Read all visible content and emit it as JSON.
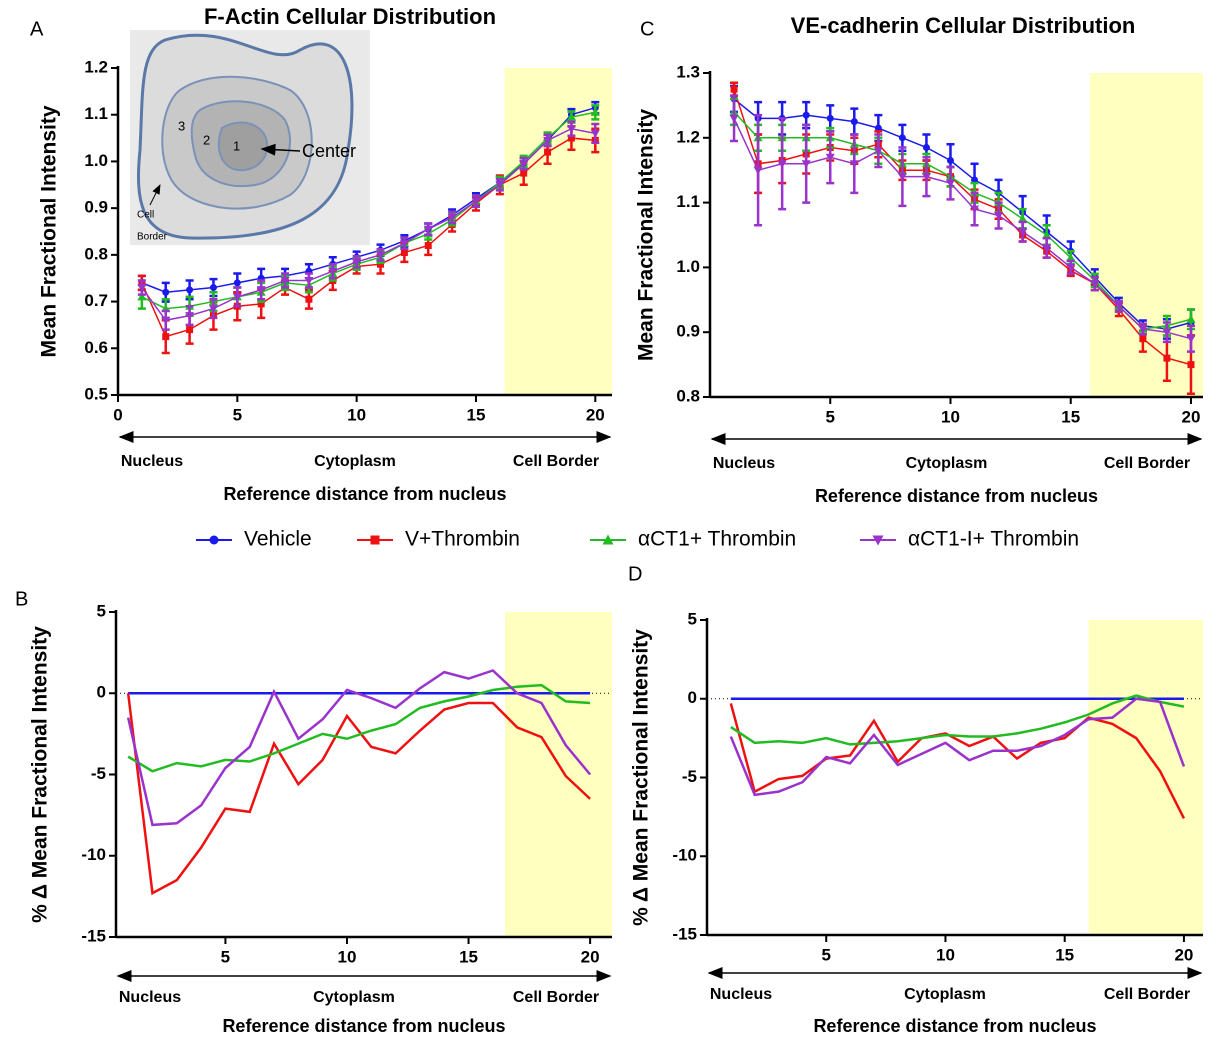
{
  "chart_data": [
    {
      "type": "line",
      "label": "A",
      "title": "F-Actin Cellular  Distribution",
      "ylabel": "Mean Fractional Intensity",
      "xlabel": "Reference distance from nucleus",
      "annotations": [
        "Nucleus",
        "Cytoplasm",
        "Cell Border"
      ],
      "inset_labels": [
        "3",
        "2",
        "1",
        "Center",
        "Cell",
        "Border"
      ],
      "x": [
        1,
        2,
        3,
        4,
        5,
        6,
        7,
        8,
        9,
        10,
        11,
        12,
        13,
        14,
        15,
        16,
        17,
        18,
        19,
        20
      ],
      "xlim": [
        0,
        20.7
      ],
      "xticks": [
        0,
        5,
        10,
        15,
        20
      ],
      "ylim": [
        0.5,
        1.2
      ],
      "yticks": [
        0.5,
        0.6,
        0.7,
        0.8,
        0.9,
        {
          "value": 1,
          "label": "1.0"
        },
        1.1,
        1.2
      ],
      "highlight": [
        16.2,
        20.7
      ],
      "highlight_color": "#ffffc0",
      "markers": true,
      "grid": false,
      "series": [
        {
          "name": "Vehicle",
          "color": "#1a1aee",
          "marker": "circle",
          "values": [
            0.74,
            0.72,
            0.725,
            0.73,
            0.74,
            0.75,
            0.755,
            0.765,
            0.78,
            0.795,
            0.81,
            0.83,
            0.855,
            0.885,
            0.92,
            0.955,
            0.995,
            1.045,
            1.1,
            1.115
          ],
          "errors": [
            0.015,
            0.02,
            0.02,
            0.018,
            0.02,
            0.02,
            0.015,
            0.015,
            0.015,
            0.012,
            0.012,
            0.012,
            0.012,
            0.012,
            0.012,
            0.012,
            0.012,
            0.012,
            0.012,
            0.012
          ]
        },
        {
          "name": "V+Thrombin",
          "color": "#ee1111",
          "marker": "square",
          "values": [
            0.74,
            0.625,
            0.64,
            0.67,
            0.69,
            0.695,
            0.73,
            0.705,
            0.745,
            0.775,
            0.78,
            0.805,
            0.82,
            0.865,
            0.91,
            0.95,
            0.975,
            1.02,
            1.05,
            1.045
          ],
          "errors": [
            0.015,
            0.035,
            0.03,
            0.03,
            0.03,
            0.03,
            0.015,
            0.02,
            0.02,
            0.015,
            0.02,
            0.02,
            0.02,
            0.015,
            0.015,
            0.02,
            0.025,
            0.025,
            0.025,
            0.025
          ]
        },
        {
          "name": "αCT1+ Thrombin",
          "color": "#22bb22",
          "marker": "triangle-up",
          "values": [
            0.71,
            0.685,
            0.69,
            0.7,
            0.71,
            0.72,
            0.74,
            0.735,
            0.76,
            0.78,
            0.795,
            0.825,
            0.845,
            0.875,
            0.915,
            0.955,
            1.0,
            1.05,
            1.095,
            1.105
          ],
          "errors": [
            0.025,
            0.02,
            0.02,
            0.02,
            0.02,
            0.02,
            0.015,
            0.015,
            0.015,
            0.012,
            0.012,
            0.012,
            0.012,
            0.012,
            0.012,
            0.012,
            0.012,
            0.012,
            0.012,
            0.015
          ]
        },
        {
          "name": "αCT1-I+ Thrombin",
          "color": "#9933cc",
          "marker": "triangle-down",
          "values": [
            0.73,
            0.66,
            0.67,
            0.685,
            0.71,
            0.725,
            0.745,
            0.745,
            0.765,
            0.785,
            0.8,
            0.825,
            0.855,
            0.88,
            0.915,
            0.95,
            0.995,
            1.045,
            1.07,
            1.06
          ],
          "errors": [
            0.015,
            0.02,
            0.02,
            0.02,
            0.02,
            0.02,
            0.015,
            0.015,
            0.015,
            0.012,
            0.012,
            0.012,
            0.012,
            0.012,
            0.012,
            0.012,
            0.012,
            0.012,
            0.015,
            0.02
          ]
        }
      ]
    },
    {
      "type": "line",
      "label": "C",
      "title": "VE-cadherin Cellular Distribution",
      "ylabel": "Mean Fractional Intensity",
      "xlabel": "Reference distance from nucleus",
      "annotations": [
        "Nucleus",
        "Cytoplasm",
        "Cell Border"
      ],
      "x": [
        1,
        2,
        3,
        4,
        5,
        6,
        7,
        8,
        9,
        10,
        11,
        12,
        13,
        14,
        15,
        16,
        17,
        18,
        19,
        20
      ],
      "xlim": [
        0,
        20.5
      ],
      "xticks": [
        5,
        10,
        15,
        20
      ],
      "ylim": [
        0.8,
        1.3
      ],
      "yticks": [
        0.8,
        0.9,
        {
          "value": 1,
          "label": "1.0"
        },
        1.1,
        1.2,
        1.3
      ],
      "highlight": [
        15.8,
        20.5
      ],
      "highlight_color": "#ffffc0",
      "markers": true,
      "grid": false,
      "series": [
        {
          "name": "Vehicle",
          "color": "#1a1aee",
          "marker": "circle",
          "values": [
            1.26,
            1.23,
            1.23,
            1.235,
            1.23,
            1.225,
            1.215,
            1.2,
            1.185,
            1.165,
            1.135,
            1.115,
            1.085,
            1.055,
            1.025,
            0.985,
            0.945,
            0.91,
            0.905,
            0.915
          ],
          "errors": [
            0.02,
            0.025,
            0.025,
            0.02,
            0.02,
            0.02,
            0.02,
            0.02,
            0.02,
            0.025,
            0.025,
            0.02,
            0.025,
            0.025,
            0.015,
            0.012,
            0.008,
            0.008,
            0.015,
            0.02
          ]
        },
        {
          "name": "V+Thrombin",
          "color": "#ee1111",
          "marker": "square",
          "values": [
            1.275,
            1.16,
            1.165,
            1.175,
            1.185,
            1.18,
            1.19,
            1.15,
            1.15,
            1.14,
            1.105,
            1.09,
            1.05,
            1.025,
            0.995,
            0.975,
            0.935,
            0.89,
            0.86,
            0.85
          ],
          "errors": [
            0.01,
            0.045,
            0.035,
            0.03,
            0.02,
            0.02,
            0.02,
            0.015,
            0.015,
            0.015,
            0.015,
            0.015,
            0.01,
            0.01,
            0.008,
            0.01,
            0.01,
            0.02,
            0.035,
            0.045
          ]
        },
        {
          "name": "αCT1+ Thrombin",
          "color": "#22bb22",
          "marker": "triangle-up",
          "values": [
            1.24,
            1.2,
            1.2,
            1.2,
            1.2,
            1.19,
            1.18,
            1.16,
            1.16,
            1.14,
            1.115,
            1.1,
            1.075,
            1.05,
            1.015,
            0.98,
            0.94,
            0.905,
            0.91,
            0.92
          ],
          "errors": [
            0.02,
            0.02,
            0.02,
            0.02,
            0.015,
            0.015,
            0.02,
            0.015,
            0.015,
            0.015,
            0.015,
            0.015,
            0.015,
            0.015,
            0.01,
            0.01,
            0.008,
            0.008,
            0.015,
            0.015
          ]
        },
        {
          "name": "αCT1-I+ Thrombin",
          "color": "#9933cc",
          "marker": "triangle-down",
          "values": [
            1.23,
            1.15,
            1.16,
            1.16,
            1.17,
            1.16,
            1.18,
            1.14,
            1.14,
            1.13,
            1.09,
            1.08,
            1.055,
            1.03,
            1.0,
            0.975,
            0.94,
            0.905,
            0.9,
            0.89
          ],
          "errors": [
            0.035,
            0.085,
            0.07,
            0.06,
            0.04,
            0.045,
            0.025,
            0.045,
            0.03,
            0.025,
            0.025,
            0.02,
            0.015,
            0.015,
            0.01,
            0.01,
            0.008,
            0.008,
            0.015,
            0.02
          ]
        }
      ]
    },
    {
      "type": "line",
      "label": "B",
      "ylabel": "% Δ Mean Fractional Intensity",
      "xlabel": "Reference distance from nucleus",
      "annotations": [
        "Nucleus",
        "Cytoplasm",
        "Cell Border"
      ],
      "x": [
        1,
        2,
        3,
        4,
        5,
        6,
        7,
        8,
        9,
        10,
        11,
        12,
        13,
        14,
        15,
        16,
        17,
        18,
        19,
        20
      ],
      "xlim": [
        0.5,
        20.9
      ],
      "xticks": [
        5,
        10,
        15,
        20
      ],
      "ylim": [
        -15,
        5
      ],
      "yticks": [
        -15,
        -10,
        -5,
        0,
        5
      ],
      "highlight": [
        16.5,
        20.9
      ],
      "highlight_color": "#ffffc0",
      "markers": false,
      "grid": false,
      "series": [
        {
          "name": "Vehicle",
          "color": "#1a1aee",
          "values": [
            0,
            0,
            0,
            0,
            0,
            0,
            0,
            0,
            0,
            0,
            0,
            0,
            0,
            0,
            0,
            0,
            0,
            0,
            0,
            0
          ]
        },
        {
          "name": "V+Thrombin",
          "color": "#ee1111",
          "values": [
            0,
            -12.3,
            -11.5,
            -9.5,
            -7.1,
            -7.3,
            -3.1,
            -5.6,
            -4.1,
            -1.4,
            -3.3,
            -3.7,
            -2.3,
            -1,
            -0.6,
            -0.6,
            -2.1,
            -2.7,
            -5.1,
            -6.5
          ]
        },
        {
          "name": "αCT1+ Thrombin",
          "color": "#22bb22",
          "values": [
            -3.9,
            -4.8,
            -4.3,
            -4.5,
            -4.1,
            -4.2,
            -3.7,
            -3.1,
            -2.5,
            -2.8,
            -2.3,
            -1.9,
            -0.9,
            -0.5,
            -0.2,
            0.2,
            0.4,
            0.5,
            -0.5,
            -0.6
          ]
        },
        {
          "name": "αCT1-I+ Thrombin",
          "color": "#9933cc",
          "values": [
            -1.5,
            -8.1,
            -8,
            -6.9,
            -4.6,
            -3.3,
            0.1,
            -2.8,
            -1.6,
            0.2,
            -0.3,
            -0.9,
            0.3,
            1.3,
            0.9,
            1.4,
            0,
            -0.6,
            -3.2,
            -5
          ]
        }
      ]
    },
    {
      "type": "line",
      "label": "D",
      "ylabel": "% Δ Mean Fractional Intensity",
      "xlabel": "Reference distance from nucleus",
      "annotations": [
        "Nucleus",
        "Cytoplasm",
        "Cell Border"
      ],
      "x": [
        1,
        2,
        3,
        4,
        5,
        6,
        7,
        8,
        9,
        10,
        11,
        12,
        13,
        14,
        15,
        16,
        17,
        18,
        19,
        20
      ],
      "xlim": [
        0,
        20.8
      ],
      "xticks": [
        5,
        10,
        15,
        20
      ],
      "ylim": [
        -15,
        5
      ],
      "yticks": [
        -15,
        -10,
        -5,
        0,
        5
      ],
      "highlight": [
        16,
        20.8
      ],
      "highlight_color": "#ffffc0",
      "markers": false,
      "grid": false,
      "series": [
        {
          "name": "Vehicle",
          "color": "#1a1aee",
          "values": [
            0,
            0,
            0,
            0,
            0,
            0,
            0,
            0,
            0,
            0,
            0,
            0,
            0,
            0,
            0,
            0,
            0,
            0,
            0,
            0
          ]
        },
        {
          "name": "V+Thrombin",
          "color": "#ee1111",
          "values": [
            -0.3,
            -5.9,
            -5.1,
            -4.9,
            -3.8,
            -3.6,
            -1.4,
            -4,
            -2.5,
            -2.2,
            -3,
            -2.4,
            -3.8,
            -2.8,
            -2.5,
            -1.2,
            -1.6,
            -2.5,
            -4.6,
            -7.6
          ]
        },
        {
          "name": "αCT1+ Thrombin",
          "color": "#22bb22",
          "values": [
            -1.8,
            -2.8,
            -2.7,
            -2.8,
            -2.5,
            -2.9,
            -2.8,
            -2.7,
            -2.5,
            -2.3,
            -2.4,
            -2.4,
            -2.2,
            -1.9,
            -1.5,
            -1,
            -0.3,
            0.2,
            -0.2,
            -0.5
          ]
        },
        {
          "name": "αCT1-I+ Thrombin",
          "color": "#9933cc",
          "values": [
            -2.4,
            -6.1,
            -5.9,
            -5.3,
            -3.7,
            -4.1,
            -2.3,
            -4.2,
            -3.5,
            -2.8,
            -3.9,
            -3.3,
            -3.3,
            -3,
            -2.3,
            -1.3,
            -1.2,
            0,
            -0.2,
            -4.3
          ]
        }
      ]
    }
  ]
}
